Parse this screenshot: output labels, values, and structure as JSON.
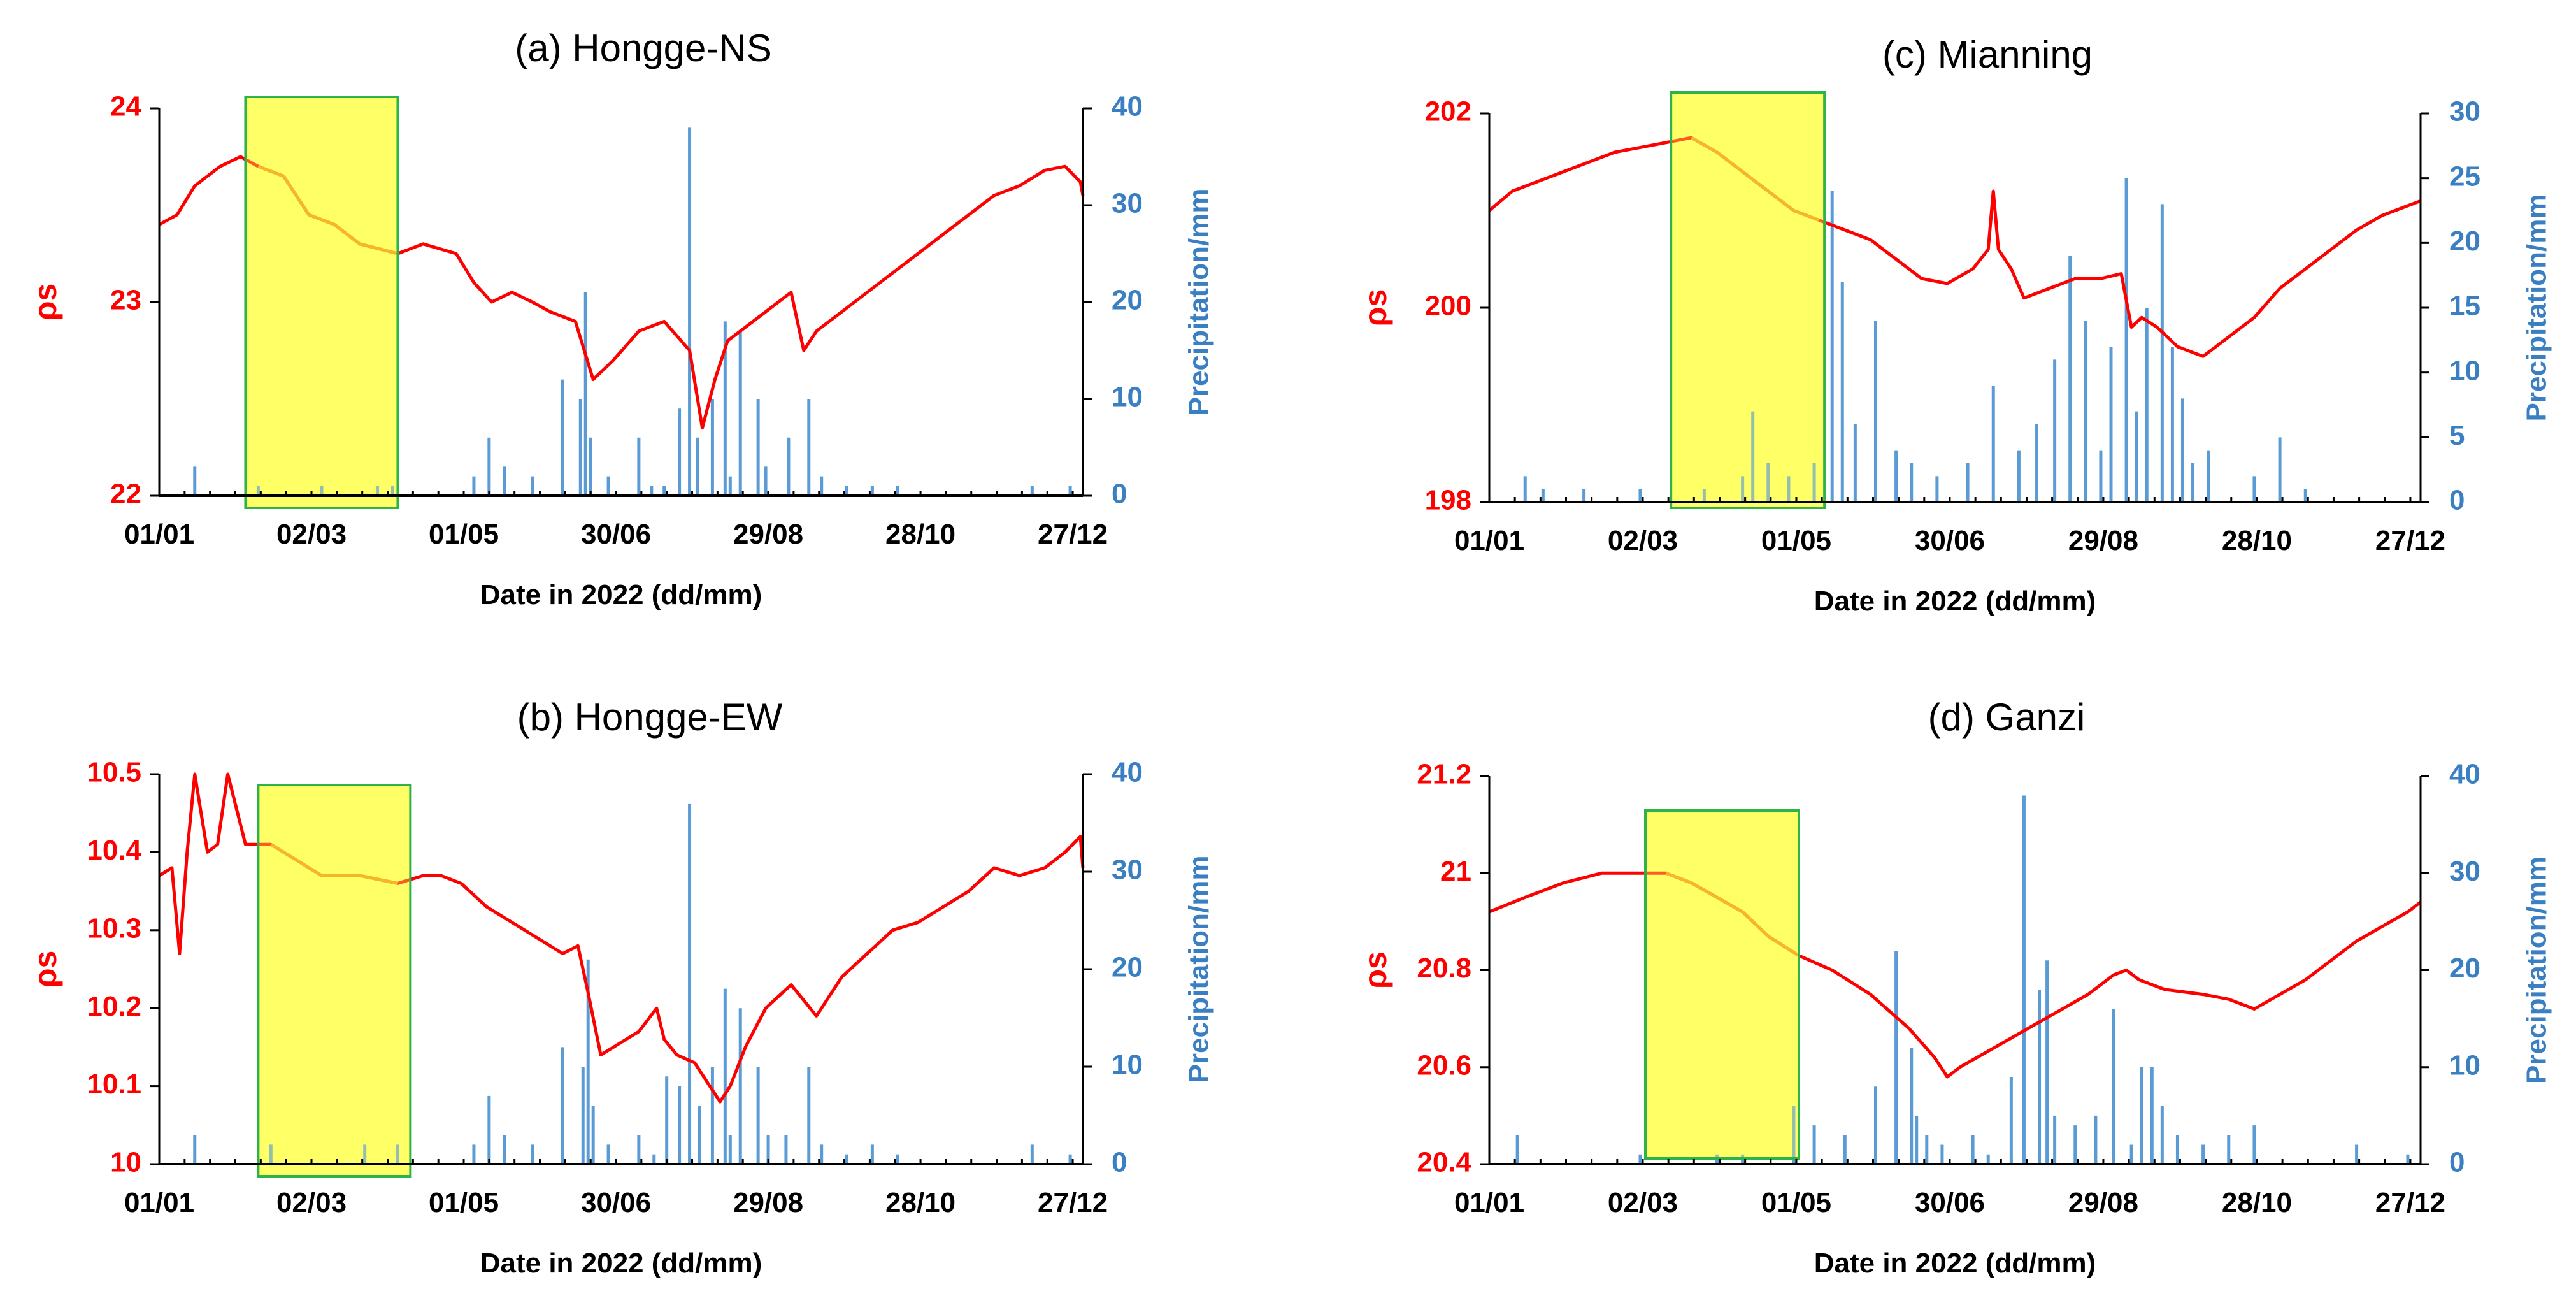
{
  "figure": {
    "colors": {
      "resistivity": "#ff0000",
      "resistivity_highlight": "#f0900a",
      "precipitation": "#5b9bd5",
      "precipitation_axis": "#3a7fc1",
      "highlight_fill": "#ffff66",
      "highlight_border": "#2db34a",
      "axis": "#000000"
    }
  },
  "chart_data": [
    {
      "id": "a",
      "type": "line",
      "title": "(a)  Hongge-NS",
      "xlabel": "Date in 2022 (dd/mm)",
      "ylabel_left": "ρs",
      "ylabel_right": "Precipitation/mm",
      "x_domain_days": [
        1,
        365
      ],
      "x_ticks": [
        {
          "day": 1,
          "label": "01/01"
        },
        {
          "day": 61,
          "label": "02/03"
        },
        {
          "day": 121,
          "label": "01/05"
        },
        {
          "day": 181,
          "label": "30/06"
        },
        {
          "day": 241,
          "label": "29/08"
        },
        {
          "day": 301,
          "label": "28/10"
        },
        {
          "day": 361,
          "label": "27/12"
        }
      ],
      "y_left": {
        "range": [
          22,
          24
        ],
        "ticks": [
          "22",
          "23",
          "24"
        ]
      },
      "y_right": {
        "range": [
          0,
          40
        ],
        "ticks": [
          "0",
          "10",
          "20",
          "30",
          "40"
        ]
      },
      "highlight_days": [
        35,
        95
      ],
      "resistivity_series": {
        "name": "ρs",
        "days": [
          1,
          8,
          15,
          25,
          33,
          40,
          50,
          60,
          70,
          80,
          95,
          105,
          118,
          125,
          132,
          140,
          148,
          155,
          165,
          172,
          176,
          180,
          190,
          200,
          210,
          215,
          220,
          225,
          230,
          240,
          250,
          255,
          260,
          270,
          280,
          290,
          300,
          310,
          320,
          330,
          340,
          350,
          358,
          364,
          365
        ],
        "values": [
          23.4,
          23.45,
          23.6,
          23.7,
          23.75,
          23.7,
          23.65,
          23.45,
          23.4,
          23.3,
          23.25,
          23.3,
          23.25,
          23.1,
          23.0,
          23.05,
          23.0,
          22.95,
          22.9,
          22.6,
          22.65,
          22.7,
          22.85,
          22.9,
          22.75,
          22.35,
          22.6,
          22.8,
          22.85,
          22.95,
          23.05,
          22.75,
          22.85,
          22.95,
          23.05,
          23.15,
          23.25,
          23.35,
          23.45,
          23.55,
          23.6,
          23.68,
          23.7,
          23.62,
          23.55
        ]
      },
      "precipitation_series": {
        "name": "Precipitation",
        "days": [
          15,
          40,
          65,
          87,
          93,
          125,
          131,
          137,
          148,
          160,
          167,
          169,
          171,
          178,
          190,
          195,
          200,
          206,
          210,
          213,
          219,
          224,
          226,
          230,
          237,
          240,
          249,
          257,
          262,
          272,
          282,
          292,
          345,
          360
        ],
        "values": [
          3,
          1,
          1,
          1,
          1,
          2,
          6,
          3,
          2,
          12,
          10,
          21,
          6,
          2,
          6,
          1,
          1,
          9,
          38,
          6,
          10,
          18,
          2,
          17,
          10,
          3,
          6,
          10,
          2,
          1,
          1,
          1,
          1,
          1
        ]
      }
    },
    {
      "id": "b",
      "type": "line",
      "title": "(b)  Hongge-EW",
      "xlabel": "Date in 2022 (dd/mm)",
      "ylabel_left": "ρs",
      "ylabel_right": "Precipitation/mm",
      "x_domain_days": [
        1,
        365
      ],
      "x_ticks": [
        {
          "day": 1,
          "label": "01/01"
        },
        {
          "day": 61,
          "label": "02/03"
        },
        {
          "day": 121,
          "label": "01/05"
        },
        {
          "day": 181,
          "label": "30/06"
        },
        {
          "day": 241,
          "label": "29/08"
        },
        {
          "day": 301,
          "label": "28/10"
        },
        {
          "day": 361,
          "label": "27/12"
        }
      ],
      "y_left": {
        "range": [
          10,
          10.5
        ],
        "ticks": [
          "10",
          "10.1",
          "10.2",
          "10.3",
          "10.4",
          "10.5"
        ]
      },
      "y_right": {
        "range": [
          0,
          40
        ],
        "ticks": [
          "0",
          "10",
          "20",
          "30",
          "40"
        ]
      },
      "highlight_days": [
        40,
        100
      ],
      "resistivity_series": {
        "name": "ρs",
        "days": [
          1,
          6,
          9,
          12,
          15,
          20,
          24,
          28,
          35,
          45,
          55,
          65,
          80,
          95,
          105,
          112,
          120,
          130,
          145,
          160,
          166,
          170,
          175,
          180,
          190,
          197,
          200,
          205,
          212,
          218,
          222,
          226,
          232,
          240,
          250,
          260,
          270,
          280,
          290,
          300,
          310,
          320,
          330,
          340,
          350,
          358,
          364,
          365
        ],
        "values": [
          10.37,
          10.38,
          10.27,
          10.4,
          10.5,
          10.4,
          10.41,
          10.5,
          10.41,
          10.41,
          10.39,
          10.37,
          10.37,
          10.36,
          10.37,
          10.37,
          10.36,
          10.33,
          10.3,
          10.27,
          10.28,
          10.22,
          10.14,
          10.15,
          10.17,
          10.2,
          10.16,
          10.14,
          10.13,
          10.1,
          10.08,
          10.1,
          10.15,
          10.2,
          10.23,
          10.19,
          10.24,
          10.27,
          10.3,
          10.31,
          10.33,
          10.35,
          10.38,
          10.37,
          10.38,
          10.4,
          10.42,
          10.38
        ]
      },
      "precipitation_series": {
        "name": "Precipitation",
        "days": [
          15,
          45,
          82,
          95,
          125,
          131,
          137,
          148,
          160,
          168,
          170,
          172,
          178,
          190,
          196,
          201,
          206,
          210,
          214,
          219,
          224,
          226,
          230,
          237,
          241,
          248,
          257,
          262,
          272,
          282,
          292,
          345,
          360
        ],
        "values": [
          3,
          2,
          2,
          2,
          2,
          7,
          3,
          2,
          12,
          10,
          21,
          6,
          2,
          3,
          1,
          9,
          8,
          37,
          6,
          10,
          18,
          3,
          16,
          10,
          3,
          3,
          10,
          2,
          1,
          2,
          1,
          2,
          1
        ]
      }
    },
    {
      "id": "c",
      "type": "line",
      "title": "(c)  Mianning",
      "xlabel": "Date in 2022 (dd/mm)",
      "ylabel_left": "ρs",
      "ylabel_right": "Precipitation/mm",
      "x_domain_days": [
        1,
        365
      ],
      "x_ticks": [
        {
          "day": 1,
          "label": "01/01"
        },
        {
          "day": 61,
          "label": "02/03"
        },
        {
          "day": 121,
          "label": "01/05"
        },
        {
          "day": 181,
          "label": "30/06"
        },
        {
          "day": 241,
          "label": "29/08"
        },
        {
          "day": 301,
          "label": "28/10"
        },
        {
          "day": 361,
          "label": "27/12"
        }
      ],
      "y_left": {
        "range": [
          198,
          202
        ],
        "ticks": [
          "198",
          "200",
          "202"
        ]
      },
      "y_right": {
        "range": [
          0,
          30
        ],
        "ticks": [
          "0",
          "5",
          "10",
          "15",
          "20",
          "25",
          "30"
        ]
      },
      "highlight_days": [
        72,
        132
      ],
      "resistivity_series": {
        "name": "ρs",
        "days": [
          1,
          10,
          20,
          30,
          40,
          50,
          60,
          70,
          80,
          90,
          100,
          110,
          120,
          130,
          140,
          150,
          160,
          170,
          180,
          190,
          196,
          198,
          200,
          205,
          210,
          220,
          230,
          240,
          248,
          252,
          256,
          262,
          270,
          280,
          290,
          300,
          310,
          320,
          330,
          340,
          350,
          360,
          365
        ],
        "values": [
          201.0,
          201.2,
          201.3,
          201.4,
          201.5,
          201.6,
          201.65,
          201.7,
          201.75,
          201.6,
          201.4,
          201.2,
          201.0,
          200.9,
          200.8,
          200.7,
          200.5,
          200.3,
          200.25,
          200.4,
          200.6,
          201.2,
          200.6,
          200.4,
          200.1,
          200.2,
          200.3,
          200.3,
          200.35,
          199.8,
          199.9,
          199.8,
          199.6,
          199.5,
          199.7,
          199.9,
          200.2,
          200.4,
          200.6,
          200.8,
          200.95,
          201.05,
          201.1
        ]
      },
      "precipitation_series": {
        "name": "Precipitation",
        "days": [
          15,
          22,
          38,
          60,
          85,
          100,
          104,
          110,
          118,
          128,
          135,
          139,
          144,
          152,
          160,
          166,
          176,
          188,
          198,
          208,
          215,
          222,
          228,
          234,
          240,
          244,
          250,
          254,
          258,
          264,
          268,
          272,
          276,
          282,
          300,
          310,
          320
        ],
        "values": [
          2,
          1,
          1,
          1,
          1,
          2,
          7,
          3,
          2,
          3,
          24,
          17,
          6,
          14,
          4,
          3,
          2,
          3,
          9,
          4,
          6,
          11,
          19,
          14,
          4,
          12,
          25,
          7,
          15,
          23,
          12,
          8,
          3,
          4,
          2,
          5,
          1
        ]
      }
    },
    {
      "id": "d",
      "type": "line",
      "title": "(d)  Ganzi",
      "xlabel": "Date in 2022 (dd/mm)",
      "ylabel_left": "ρs",
      "ylabel_right": "Precipitation/mm",
      "x_domain_days": [
        1,
        365
      ],
      "x_ticks": [
        {
          "day": 1,
          "label": "01/01"
        },
        {
          "day": 61,
          "label": "02/03"
        },
        {
          "day": 121,
          "label": "01/05"
        },
        {
          "day": 181,
          "label": "30/06"
        },
        {
          "day": 241,
          "label": "29/08"
        },
        {
          "day": 301,
          "label": "28/10"
        },
        {
          "day": 361,
          "label": "27/12"
        }
      ],
      "y_left": {
        "range": [
          20.4,
          21.2
        ],
        "ticks": [
          "20.4",
          "20.6",
          "20.8",
          "21",
          "21.2"
        ]
      },
      "y_right": {
        "range": [
          0,
          40
        ],
        "ticks": [
          "0",
          "10",
          "20",
          "30",
          "40"
        ]
      },
      "highlight_days": [
        62,
        122
      ],
      "resistivity_series": {
        "name": "ρs",
        "days": [
          1,
          15,
          30,
          45,
          60,
          70,
          80,
          90,
          100,
          110,
          122,
          135,
          150,
          165,
          175,
          180,
          185,
          195,
          205,
          215,
          225,
          235,
          245,
          250,
          255,
          265,
          280,
          290,
          300,
          310,
          320,
          330,
          340,
          350,
          360,
          365
        ],
        "values": [
          20.92,
          20.95,
          20.98,
          21.0,
          21.0,
          21.0,
          20.98,
          20.95,
          20.92,
          20.87,
          20.83,
          20.8,
          20.75,
          20.68,
          20.62,
          20.58,
          20.6,
          20.63,
          20.66,
          20.69,
          20.72,
          20.75,
          20.79,
          20.8,
          20.78,
          20.76,
          20.75,
          20.74,
          20.72,
          20.75,
          20.78,
          20.82,
          20.86,
          20.89,
          20.92,
          20.94
        ]
      },
      "precipitation_series": {
        "name": "Precipitation",
        "days": [
          12,
          60,
          90,
          100,
          120,
          128,
          140,
          152,
          160,
          166,
          168,
          172,
          178,
          190,
          196,
          205,
          210,
          216,
          219,
          222,
          230,
          238,
          245,
          252,
          256,
          260,
          264,
          270,
          280,
          290,
          300,
          340,
          360
        ],
        "values": [
          3,
          1,
          1,
          1,
          6,
          4,
          3,
          8,
          22,
          12,
          5,
          3,
          2,
          3,
          1,
          9,
          38,
          18,
          21,
          5,
          4,
          5,
          16,
          2,
          10,
          10,
          6,
          3,
          2,
          3,
          4,
          2,
          1
        ]
      }
    }
  ]
}
